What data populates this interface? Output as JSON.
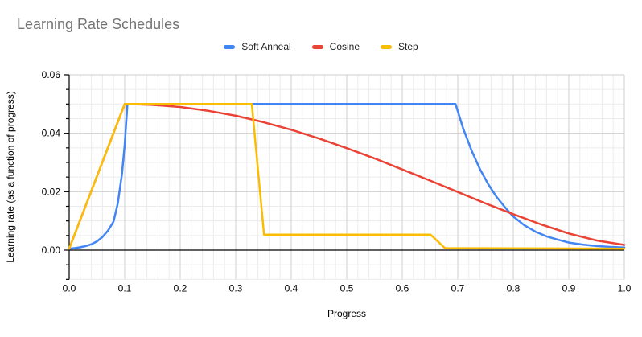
{
  "title": "Learning Rate Schedules",
  "legend": {
    "position": "top-center"
  },
  "chart_data": {
    "type": "line",
    "title": "Learning Rate Schedules",
    "xlabel": "Progress",
    "ylabel": "Learning rate (as a function of progress)",
    "xlim": [
      0,
      1
    ],
    "ylim": [
      -0.01,
      0.06
    ],
    "x_tick_labels": [
      "0.0",
      "0.1",
      "0.2",
      "0.3",
      "0.4",
      "0.5",
      "0.6",
      "0.7",
      "0.8",
      "0.9",
      "1.0"
    ],
    "y_tick_labels": [
      "0.00",
      "0.02",
      "0.04",
      "0.06"
    ],
    "x_minor_step": 0.02,
    "y_minor_step": 0.005,
    "grid": true,
    "legend_position": "top",
    "colors": {
      "grid_minor": "#ececec",
      "grid_major": "#cfcfcf",
      "axis_line": "#000000",
      "tick_label": "#000000",
      "title_gray": "#757575"
    },
    "series": [
      {
        "name": "Soft Anneal",
        "color": "#4285F4",
        "points": [
          [
            0,
            0.0005
          ],
          [
            0.01,
            0.0007
          ],
          [
            0.02,
            0.001
          ],
          [
            0.03,
            0.0014
          ],
          [
            0.04,
            0.002
          ],
          [
            0.05,
            0.003
          ],
          [
            0.06,
            0.0045
          ],
          [
            0.07,
            0.0067
          ],
          [
            0.08,
            0.0098
          ],
          [
            0.0875,
            0.016
          ],
          [
            0.095,
            0.026
          ],
          [
            0.1,
            0.036
          ],
          [
            0.105,
            0.05
          ],
          [
            0.696,
            0.05
          ],
          [
            0.71,
            0.0415
          ],
          [
            0.725,
            0.034
          ],
          [
            0.74,
            0.0277
          ],
          [
            0.755,
            0.0225
          ],
          [
            0.77,
            0.0182
          ],
          [
            0.785,
            0.0147
          ],
          [
            0.8,
            0.0115
          ],
          [
            0.82,
            0.0085
          ],
          [
            0.84,
            0.0063
          ],
          [
            0.86,
            0.0047
          ],
          [
            0.88,
            0.0036
          ],
          [
            0.9,
            0.0026
          ],
          [
            0.925,
            0.0019
          ],
          [
            0.95,
            0.0014
          ],
          [
            0.975,
            0.0011
          ],
          [
            1,
            0.0009
          ]
        ]
      },
      {
        "name": "Cosine",
        "color": "#EA4335",
        "points": [
          [
            0,
            0.0005
          ],
          [
            0.1,
            0.05
          ],
          [
            0.15,
            0.0497
          ],
          [
            0.2,
            0.049
          ],
          [
            0.25,
            0.0477
          ],
          [
            0.3,
            0.046
          ],
          [
            0.35,
            0.0438
          ],
          [
            0.4,
            0.0412
          ],
          [
            0.45,
            0.0382
          ],
          [
            0.5,
            0.0349
          ],
          [
            0.55,
            0.0314
          ],
          [
            0.6,
            0.0276
          ],
          [
            0.65,
            0.0238
          ],
          [
            0.7,
            0.0199
          ],
          [
            0.75,
            0.016
          ],
          [
            0.8,
            0.0123
          ],
          [
            0.85,
            0.0088
          ],
          [
            0.9,
            0.0057
          ],
          [
            0.95,
            0.0033
          ],
          [
            1,
            0.0018
          ]
        ]
      },
      {
        "name": "Step",
        "color": "#FBBC04",
        "points": [
          [
            0,
            0.0005
          ],
          [
            0.1,
            0.05
          ],
          [
            0.329,
            0.05
          ],
          [
            0.351,
            0.0053
          ],
          [
            0.651,
            0.0053
          ],
          [
            0.677,
            0.0007
          ],
          [
            1,
            0.0005
          ]
        ]
      }
    ]
  }
}
